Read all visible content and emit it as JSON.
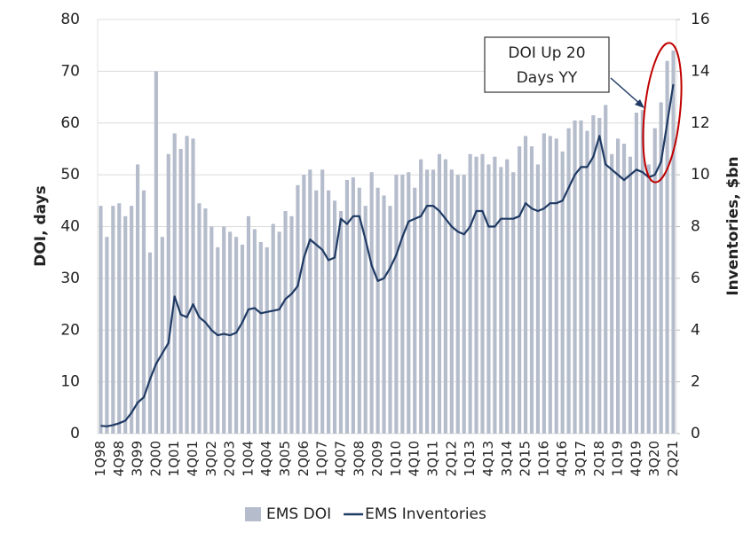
{
  "chart_data": {
    "type": "bar_line",
    "y_label": "DOI, days",
    "y2_label": "Inventories, $bn",
    "annotation": [
      "DOI Up 20",
      "Days YY"
    ],
    "legend": "bottom",
    "grid": true,
    "categories": [
      "1Q98",
      null,
      null,
      "4Q98",
      null,
      null,
      "3Q99",
      null,
      null,
      "2Q00",
      null,
      null,
      "1Q01",
      null,
      null,
      "4Q01",
      null,
      null,
      "3Q02",
      null,
      null,
      "2Q03",
      null,
      null,
      "1Q04",
      null,
      null,
      "4Q04",
      null,
      null,
      "3Q05",
      null,
      null,
      "2Q06",
      null,
      null,
      "1Q07",
      null,
      null,
      "4Q07",
      null,
      null,
      "3Q08",
      null,
      null,
      "2Q09",
      null,
      null,
      "1Q10",
      null,
      null,
      "4Q10",
      null,
      null,
      "3Q11",
      null,
      null,
      "2Q12",
      null,
      null,
      "1Q13",
      null,
      null,
      "4Q13",
      null,
      null,
      "3Q14",
      null,
      null,
      "2Q15",
      null,
      null,
      "1Q16",
      null,
      null,
      "4Q16",
      null,
      null,
      "3Q17",
      null,
      null,
      "2Q18",
      null,
      null,
      "1Q19",
      null,
      null,
      "4Q19",
      null,
      null,
      "3Q20",
      null,
      null,
      "2Q21"
    ],
    "series": [
      {
        "name": "EMS DOI",
        "color": "#b5bccb",
        "values": [
          44,
          38,
          44,
          44.5,
          42,
          44,
          52,
          47,
          35,
          70,
          38,
          54,
          58,
          55,
          57.5,
          57,
          44.5,
          43.5,
          40,
          36,
          40,
          39,
          38,
          36.5,
          42,
          39.5,
          37,
          36,
          40.5,
          39,
          43,
          42,
          48,
          50,
          51,
          47,
          51,
          47,
          45,
          43,
          49,
          49.5,
          47.5,
          44,
          50.5,
          47.5,
          46,
          44,
          50,
          50,
          50.5,
          47.5,
          53,
          51,
          51,
          54,
          53,
          51,
          50,
          50,
          54,
          53.5,
          54,
          52,
          53.5,
          51.5,
          53,
          50.5,
          55.5,
          57.5,
          55.5,
          52,
          58,
          57.5,
          57,
          54.5,
          59,
          60.5,
          60.5,
          58.5,
          61.5,
          61,
          63.5,
          54,
          57,
          56,
          53.5,
          62,
          62.5,
          52,
          59,
          64,
          72,
          74
        ]
      },
      {
        "name": "EMS Inventories",
        "color": "#1f3a64",
        "axis": "y2",
        "values": [
          0.3,
          0.28,
          0.33,
          0.4,
          0.5,
          0.8,
          1.2,
          1.4,
          2.1,
          2.7,
          3.1,
          3.5,
          5.3,
          4.6,
          4.5,
          5.0,
          4.5,
          4.3,
          4.0,
          3.8,
          3.85,
          3.8,
          3.9,
          4.3,
          4.8,
          4.85,
          4.65,
          4.7,
          4.75,
          4.8,
          5.2,
          5.4,
          5.7,
          6.8,
          7.5,
          7.3,
          7.1,
          6.7,
          6.8,
          8.3,
          8.1,
          8.4,
          8.4,
          7.5,
          6.5,
          5.9,
          6.0,
          6.4,
          6.9,
          7.6,
          8.2,
          8.3,
          8.4,
          8.8,
          8.8,
          8.6,
          8.3,
          8.0,
          7.8,
          7.7,
          8.0,
          8.6,
          8.6,
          8.0,
          8.0,
          8.3,
          8.3,
          8.3,
          8.4,
          8.9,
          8.7,
          8.6,
          8.7,
          8.9,
          8.9,
          9.0,
          9.5,
          10.0,
          10.3,
          10.3,
          10.7,
          11.5,
          10.4,
          10.2,
          10.0,
          9.8,
          10.0,
          10.2,
          10.1,
          9.9,
          10.0,
          10.5,
          12.0,
          13.5
        ]
      }
    ],
    "ylim": [
      0,
      80
    ],
    "yticks": [
      0,
      10,
      20,
      30,
      40,
      50,
      60,
      70,
      80
    ],
    "y2lim": [
      0,
      16
    ],
    "y2ticks": [
      0,
      2,
      4,
      6,
      8,
      10,
      12,
      14,
      16
    ]
  }
}
